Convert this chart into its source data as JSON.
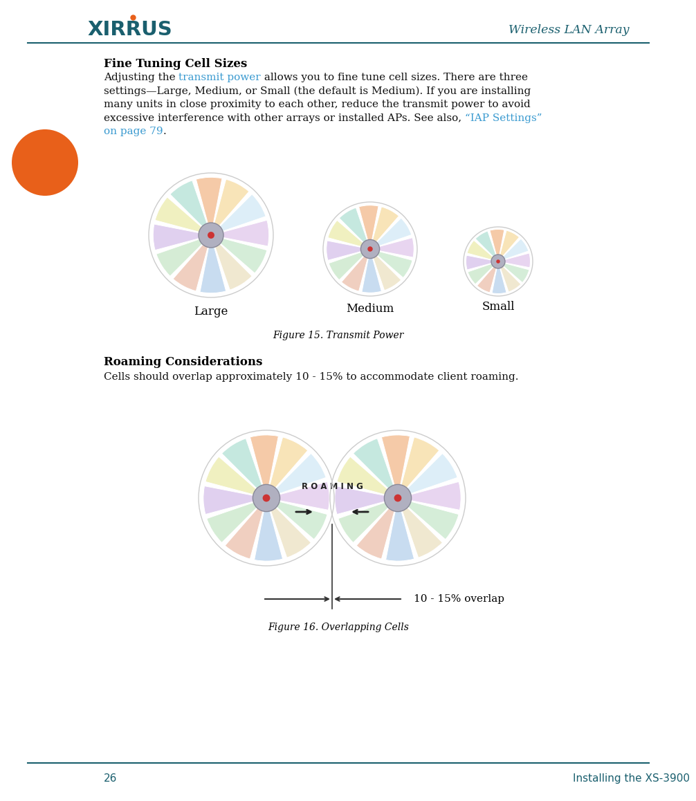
{
  "title_header": "Wireless LAN Array",
  "page_number": "26",
  "page_footer": "Installing the XS-3900",
  "section_title1": "Fine Tuning Cell Sizes",
  "section_title2": "Roaming Considerations",
  "body_text2": "Cells should overlap approximately 10 - 15% to accommodate client roaming.",
  "fig1_caption": "Figure 15. Transmit Power",
  "fig2_caption": "Figure 16. Overlapping Cells",
  "labels_fig1": [
    "Large",
    "Medium",
    "Small"
  ],
  "roaming_label": "R O A M I N G",
  "overlap_label": "10 - 15% overlap",
  "header_color": "#1a5f6e",
  "link_color": "#3a9ad0",
  "body_color": "#111111",
  "bg_color": "#ffffff",
  "orange_color": "#e8601a",
  "petal_colors": [
    "#f8e4b8",
    "#ddeef8",
    "#e8d5f0",
    "#d5edd8",
    "#f0e8d0",
    "#c8dcf0",
    "#f0cfc0",
    "#d5ecd5",
    "#e0d0ef",
    "#f0f0c0",
    "#c5e8df",
    "#f5caa8"
  ],
  "center_fill": "#b0b0c0",
  "center_edge": "#888898",
  "dot_color": "#cc3333"
}
